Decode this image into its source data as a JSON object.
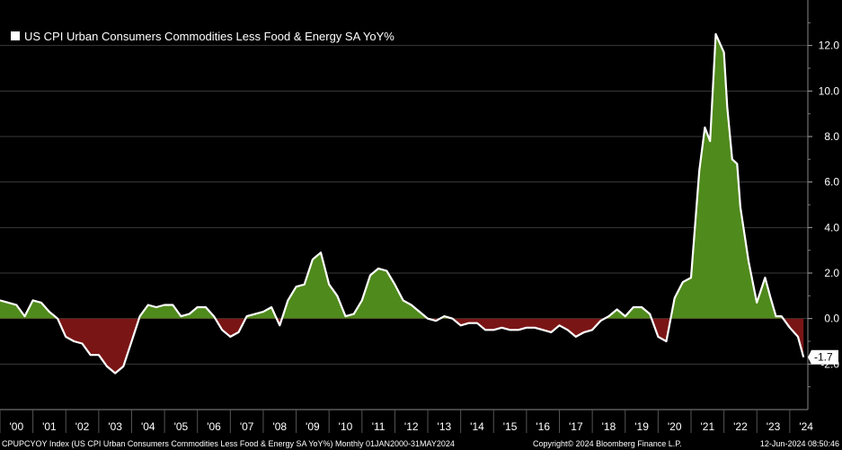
{
  "chart_data": {
    "type": "area",
    "title": "US CPI Urban Consumers Commodities Less Food & Energy SA YoY%",
    "ylim": [
      -4,
      14
    ],
    "yticks": [
      -2,
      0,
      2,
      4,
      6,
      8,
      10,
      12
    ],
    "ytick_labels": [
      "-2.0",
      "0.0",
      "2.0",
      "4.0",
      "6.0",
      "8.0",
      "10.0",
      "12.0"
    ],
    "x_categories": [
      "'00",
      "'01",
      "'02",
      "'03",
      "'04",
      "'05",
      "'06",
      "'07",
      "'08",
      "'09",
      "'10",
      "'11",
      "'12",
      "'13",
      "'14",
      "'15",
      "'16",
      "'17",
      "'18",
      "'19",
      "'20",
      "'21",
      "'22",
      "'23",
      "'24"
    ],
    "grid": true,
    "positive_color": "#4f8a1c",
    "negative_color": "#7a1515",
    "line_color": "#ffffff",
    "last_value_label": "-1.7",
    "series": [
      {
        "name": "US CPI Urban Consumers Commodities Less Food & Energy SA YoY%",
        "x": [
          2000.0,
          2000.25,
          2000.5,
          2000.75,
          2001.0,
          2001.25,
          2001.5,
          2001.75,
          2002.0,
          2002.25,
          2002.5,
          2002.75,
          2003.0,
          2003.25,
          2003.5,
          2003.75,
          2004.0,
          2004.25,
          2004.5,
          2004.75,
          2005.0,
          2005.25,
          2005.5,
          2005.75,
          2006.0,
          2006.25,
          2006.5,
          2006.75,
          2007.0,
          2007.25,
          2007.5,
          2007.75,
          2008.0,
          2008.25,
          2008.5,
          2008.75,
          2009.0,
          2009.25,
          2009.5,
          2009.75,
          2010.0,
          2010.25,
          2010.5,
          2010.75,
          2011.0,
          2011.25,
          2011.5,
          2011.75,
          2012.0,
          2012.25,
          2012.5,
          2012.75,
          2013.0,
          2013.25,
          2013.5,
          2013.75,
          2014.0,
          2014.25,
          2014.5,
          2014.75,
          2015.0,
          2015.25,
          2015.5,
          2015.75,
          2016.0,
          2016.25,
          2016.5,
          2016.75,
          2017.0,
          2017.25,
          2017.5,
          2017.75,
          2018.0,
          2018.25,
          2018.5,
          2018.75,
          2019.0,
          2019.25,
          2019.5,
          2019.75,
          2020.0,
          2020.25,
          2020.5,
          2020.75,
          2021.0,
          2021.25,
          2021.42,
          2021.58,
          2021.75,
          2022.0,
          2022.1,
          2022.25,
          2022.4,
          2022.5,
          2022.75,
          2023.0,
          2023.25,
          2023.42,
          2023.58,
          2023.75,
          2024.0,
          2024.25,
          2024.42
        ],
        "values": [
          0.8,
          0.7,
          0.6,
          0.1,
          0.8,
          0.7,
          0.3,
          0.0,
          -0.8,
          -1.0,
          -1.1,
          -1.6,
          -1.6,
          -2.1,
          -2.4,
          -2.1,
          -1.0,
          0.1,
          0.6,
          0.5,
          0.6,
          0.6,
          0.1,
          0.2,
          0.5,
          0.5,
          0.1,
          -0.5,
          -0.8,
          -0.6,
          0.1,
          0.2,
          0.3,
          0.5,
          -0.3,
          0.8,
          1.4,
          1.5,
          2.6,
          2.9,
          1.5,
          1.0,
          0.1,
          0.2,
          0.8,
          1.9,
          2.2,
          2.1,
          1.5,
          0.8,
          0.6,
          0.3,
          0.0,
          -0.1,
          0.1,
          0.0,
          -0.3,
          -0.2,
          -0.2,
          -0.5,
          -0.5,
          -0.4,
          -0.5,
          -0.5,
          -0.4,
          -0.4,
          -0.5,
          -0.6,
          -0.3,
          -0.5,
          -0.8,
          -0.6,
          -0.5,
          -0.1,
          0.1,
          0.4,
          0.1,
          0.5,
          0.5,
          0.2,
          -0.8,
          -1.0,
          0.9,
          1.6,
          1.8,
          6.5,
          8.4,
          7.8,
          12.5,
          11.7,
          9.3,
          7.0,
          6.8,
          4.9,
          2.5,
          0.7,
          1.8,
          0.9,
          0.1,
          0.1,
          -0.4,
          -0.8,
          -1.7
        ]
      }
    ]
  },
  "legend": {
    "label": "US CPI Urban Consumers Commodities Less Food & Energy SA YoY%"
  },
  "footer": {
    "left": "CPUPCYOY Index (US CPI Urban Consumers Commodities Less Food & Energy SA YoY%)  Monthly 01JAN2000-31MAY2024",
    "center": "Copyright© 2024 Bloomberg Finance L.P.",
    "right": "12-Jun-2024 08:50:46"
  }
}
